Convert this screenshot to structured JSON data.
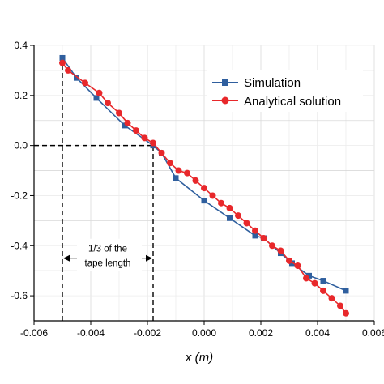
{
  "chart_data": {
    "type": "line",
    "xlabel": "x (m)",
    "ylabel": "",
    "xlim": [
      -0.006,
      0.006
    ],
    "ylim": [
      -0.7,
      0.4
    ],
    "x_ticks": [
      -0.006,
      -0.004,
      -0.002,
      0.0,
      0.002,
      0.004,
      0.006
    ],
    "x_tick_labels": [
      "-0.006",
      "-0.004",
      "-0.002",
      "0.000",
      "0.002",
      "0.004",
      "0.006"
    ],
    "y_ticks": [
      0.4,
      0.2,
      0.0,
      -0.2,
      -0.4,
      -0.6
    ],
    "y_tick_labels": [
      "0.4",
      "0.2",
      "0.0",
      "-0.2",
      "-0.4",
      "-0.6"
    ],
    "grid": true,
    "legend_position": "top-right",
    "series": [
      {
        "name": "Simulation",
        "color": "#2f5f9e",
        "marker": "square",
        "x": [
          -0.005,
          -0.0045,
          -0.0038,
          -0.0028,
          -0.0018,
          -0.0015,
          -0.001,
          0.0,
          0.0009,
          0.0018,
          0.0021,
          0.0027,
          0.0031,
          0.0037,
          0.0042,
          0.005
        ],
        "y": [
          0.35,
          0.27,
          0.19,
          0.08,
          0.0,
          -0.03,
          -0.13,
          -0.22,
          -0.29,
          -0.36,
          -0.37,
          -0.43,
          -0.47,
          -0.52,
          -0.54,
          -0.58
        ]
      },
      {
        "name": "Analytical solution",
        "color": "#e8282b",
        "marker": "circle",
        "x": [
          -0.005,
          -0.0048,
          -0.0042,
          -0.0037,
          -0.0034,
          -0.003,
          -0.0027,
          -0.0024,
          -0.0021,
          -0.0018,
          -0.0015,
          -0.0012,
          -0.0009,
          -0.0006,
          -0.0003,
          0.0,
          0.0003,
          0.0006,
          0.0009,
          0.0012,
          0.0015,
          0.0018,
          0.0021,
          0.0024,
          0.0027,
          0.003,
          0.0033,
          0.0036,
          0.0039,
          0.0042,
          0.0045,
          0.0048,
          0.005
        ],
        "y": [
          0.33,
          0.3,
          0.25,
          0.21,
          0.17,
          0.13,
          0.09,
          0.06,
          0.03,
          0.01,
          -0.03,
          -0.07,
          -0.1,
          -0.11,
          -0.14,
          -0.17,
          -0.2,
          -0.23,
          -0.25,
          -0.28,
          -0.31,
          -0.34,
          -0.37,
          -0.4,
          -0.42,
          -0.46,
          -0.48,
          -0.53,
          -0.55,
          -0.58,
          -0.61,
          -0.64,
          -0.67
        ]
      }
    ],
    "reference_lines": [
      {
        "x": -0.005,
        "from_y": -0.7,
        "to_y": 0.35
      },
      {
        "x": -0.0018,
        "from_y": -0.7,
        "to_y": 0.0
      },
      {
        "y": 0.0,
        "from_x": -0.006,
        "to_x": -0.0018
      }
    ],
    "annotation": {
      "text_lines": [
        "1/3 of the",
        "tape length"
      ],
      "span_x": [
        -0.005,
        -0.0018
      ],
      "y": -0.45
    }
  }
}
